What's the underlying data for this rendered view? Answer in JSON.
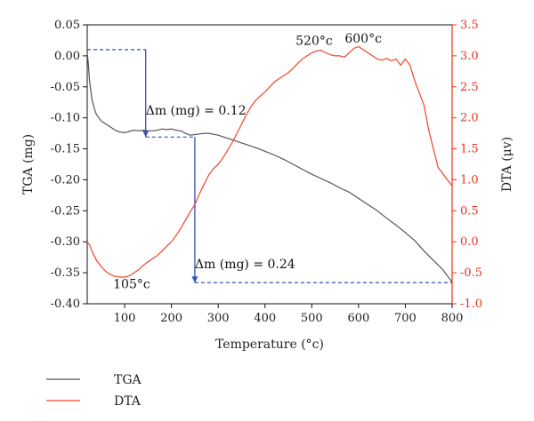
{
  "chart_data": {
    "type": "line",
    "xlabel": "Temperature (°c)",
    "ylabel_left": "TGA (mg)",
    "ylabel_right": "DTA (μv)",
    "xlim": [
      20,
      800
    ],
    "ylim_left": [
      -0.4,
      0.05
    ],
    "ylim_right": [
      -1.0,
      3.5
    ],
    "x_ticks": [
      "100",
      "200",
      "300",
      "400",
      "500",
      "600",
      "700",
      "800"
    ],
    "x_tick_values": [
      100,
      200,
      300,
      400,
      500,
      600,
      700,
      800
    ],
    "y_ticks_left": [
      "0.05",
      "0.00",
      "-0.05",
      "-0.10",
      "-0.15",
      "-0.20",
      "-0.25",
      "-0.30",
      "-0.35",
      "-0.40"
    ],
    "y_tick_values_left": [
      0.05,
      0.0,
      -0.05,
      -0.1,
      -0.15,
      -0.2,
      -0.25,
      -0.3,
      -0.35,
      -0.4
    ],
    "y_ticks_right": [
      "3.5",
      "3.0",
      "2.5",
      "2.0",
      "1.5",
      "1.0",
      "0.5",
      "0.0",
      "-0.5",
      "-1.0"
    ],
    "y_tick_values_right": [
      3.5,
      3.0,
      2.5,
      2.0,
      1.5,
      1.0,
      0.5,
      0.0,
      -0.5,
      -1.0
    ],
    "legend_position": "bottom-left",
    "series": [
      {
        "name": "TGA",
        "axis": "left",
        "color": "#555555",
        "points": [
          [
            20,
            0.005
          ],
          [
            22,
            -0.01
          ],
          [
            25,
            -0.04
          ],
          [
            30,
            -0.07
          ],
          [
            35,
            -0.085
          ],
          [
            40,
            -0.095
          ],
          [
            50,
            -0.105
          ],
          [
            60,
            -0.11
          ],
          [
            70,
            -0.115
          ],
          [
            80,
            -0.12
          ],
          [
            90,
            -0.123
          ],
          [
            100,
            -0.124
          ],
          [
            110,
            -0.122
          ],
          [
            120,
            -0.12
          ],
          [
            130,
            -0.121
          ],
          [
            140,
            -0.12
          ],
          [
            150,
            -0.121
          ],
          [
            160,
            -0.121
          ],
          [
            170,
            -0.12
          ],
          [
            180,
            -0.118
          ],
          [
            190,
            -0.119
          ],
          [
            200,
            -0.118
          ],
          [
            210,
            -0.12
          ],
          [
            220,
            -0.121
          ],
          [
            230,
            -0.125
          ],
          [
            240,
            -0.128
          ],
          [
            250,
            -0.127
          ],
          [
            260,
            -0.126
          ],
          [
            270,
            -0.125
          ],
          [
            280,
            -0.125
          ],
          [
            300,
            -0.128
          ],
          [
            320,
            -0.133
          ],
          [
            340,
            -0.138
          ],
          [
            360,
            -0.143
          ],
          [
            380,
            -0.148
          ],
          [
            400,
            -0.154
          ],
          [
            420,
            -0.16
          ],
          [
            440,
            -0.167
          ],
          [
            460,
            -0.175
          ],
          [
            480,
            -0.183
          ],
          [
            500,
            -0.191
          ],
          [
            520,
            -0.198
          ],
          [
            540,
            -0.205
          ],
          [
            560,
            -0.213
          ],
          [
            580,
            -0.22
          ],
          [
            600,
            -0.23
          ],
          [
            620,
            -0.24
          ],
          [
            640,
            -0.25
          ],
          [
            660,
            -0.262
          ],
          [
            680,
            -0.273
          ],
          [
            700,
            -0.285
          ],
          [
            720,
            -0.298
          ],
          [
            740,
            -0.315
          ],
          [
            760,
            -0.33
          ],
          [
            780,
            -0.345
          ],
          [
            790,
            -0.355
          ],
          [
            800,
            -0.365
          ]
        ]
      },
      {
        "name": "DTA",
        "axis": "right",
        "color": "#f0442b",
        "points": [
          [
            20,
            0.0
          ],
          [
            25,
            -0.05
          ],
          [
            30,
            -0.15
          ],
          [
            40,
            -0.3
          ],
          [
            50,
            -0.4
          ],
          [
            60,
            -0.48
          ],
          [
            70,
            -0.53
          ],
          [
            80,
            -0.56
          ],
          [
            90,
            -0.57
          ],
          [
            100,
            -0.57
          ],
          [
            110,
            -0.55
          ],
          [
            120,
            -0.5
          ],
          [
            130,
            -0.45
          ],
          [
            140,
            -0.38
          ],
          [
            150,
            -0.32
          ],
          [
            160,
            -0.27
          ],
          [
            170,
            -0.22
          ],
          [
            180,
            -0.15
          ],
          [
            190,
            -0.07
          ],
          [
            200,
            0.0
          ],
          [
            210,
            0.1
          ],
          [
            220,
            0.22
          ],
          [
            230,
            0.35
          ],
          [
            240,
            0.48
          ],
          [
            250,
            0.6
          ],
          [
            260,
            0.78
          ],
          [
            270,
            0.93
          ],
          [
            280,
            1.08
          ],
          [
            290,
            1.18
          ],
          [
            300,
            1.25
          ],
          [
            310,
            1.35
          ],
          [
            320,
            1.48
          ],
          [
            330,
            1.6
          ],
          [
            340,
            1.75
          ],
          [
            350,
            1.9
          ],
          [
            360,
            2.05
          ],
          [
            370,
            2.18
          ],
          [
            380,
            2.28
          ],
          [
            390,
            2.35
          ],
          [
            400,
            2.42
          ],
          [
            410,
            2.5
          ],
          [
            420,
            2.58
          ],
          [
            430,
            2.63
          ],
          [
            440,
            2.68
          ],
          [
            450,
            2.73
          ],
          [
            460,
            2.8
          ],
          [
            470,
            2.88
          ],
          [
            480,
            2.95
          ],
          [
            490,
            3.0
          ],
          [
            500,
            3.05
          ],
          [
            510,
            3.08
          ],
          [
            520,
            3.09
          ],
          [
            530,
            3.05
          ],
          [
            540,
            3.02
          ],
          [
            550,
            3.0
          ],
          [
            560,
            3.0
          ],
          [
            570,
            2.98
          ],
          [
            580,
            3.05
          ],
          [
            590,
            3.12
          ],
          [
            600,
            3.15
          ],
          [
            610,
            3.1
          ],
          [
            620,
            3.05
          ],
          [
            630,
            3.0
          ],
          [
            640,
            2.95
          ],
          [
            650,
            2.93
          ],
          [
            660,
            2.96
          ],
          [
            670,
            2.92
          ],
          [
            680,
            2.95
          ],
          [
            690,
            2.85
          ],
          [
            700,
            2.95
          ],
          [
            710,
            2.85
          ],
          [
            720,
            2.6
          ],
          [
            730,
            2.4
          ],
          [
            740,
            2.2
          ],
          [
            750,
            1.8
          ],
          [
            760,
            1.5
          ],
          [
            770,
            1.2
          ],
          [
            780,
            1.1
          ],
          [
            790,
            1.0
          ],
          [
            800,
            0.9
          ]
        ]
      }
    ],
    "annotations": [
      {
        "text": "Δm (mg) = 0.12",
        "x": 145,
        "y": -0.095,
        "axis": "left",
        "anchor": "start"
      },
      {
        "text": "Δm (mg) = 0.24",
        "x": 250,
        "y": -0.343,
        "axis": "left",
        "anchor": "start"
      },
      {
        "text": "105°c",
        "x": 115,
        "y": -0.375,
        "axis": "left",
        "anchor": "middle"
      },
      {
        "text": "520°c",
        "x": 505,
        "y": 0.018,
        "axis": "left",
        "anchor": "middle"
      },
      {
        "text": "600°c",
        "x": 610,
        "y": 0.021,
        "axis": "left",
        "anchor": "middle"
      }
    ],
    "mass_loss_markers": [
      {
        "x_from": 20,
        "x_to": 145,
        "y_from": 0.01,
        "y_to": -0.131
      },
      {
        "x_from": 145,
        "x_to": 250,
        "y_from": -0.131,
        "y_to": -0.366
      },
      {
        "x_from": 250,
        "x_to": 800,
        "y_from": -0.366,
        "y_to": -0.366
      }
    ]
  }
}
